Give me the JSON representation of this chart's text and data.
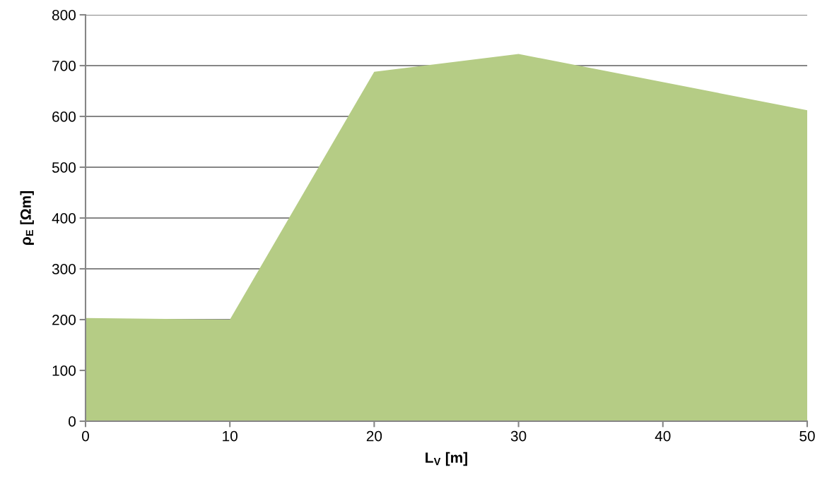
{
  "chart_data": {
    "type": "area",
    "xlabel": "L$_{V}$ [m]",
    "ylabel": "ρ$_{E}$ [Ωm]",
    "x": [
      0,
      10,
      20,
      30,
      50
    ],
    "series": [
      {
        "color": "#b5cc85",
        "values": [
          203,
          200,
          688,
          723,
          612
        ]
      }
    ],
    "xlim": [
      0,
      50
    ],
    "xticks": [
      0,
      10,
      20,
      30,
      40,
      50
    ],
    "ylim": [
      0,
      800
    ],
    "yticks": [
      0,
      100,
      200,
      300,
      400,
      500,
      600,
      700,
      800
    ],
    "grid": "y"
  }
}
